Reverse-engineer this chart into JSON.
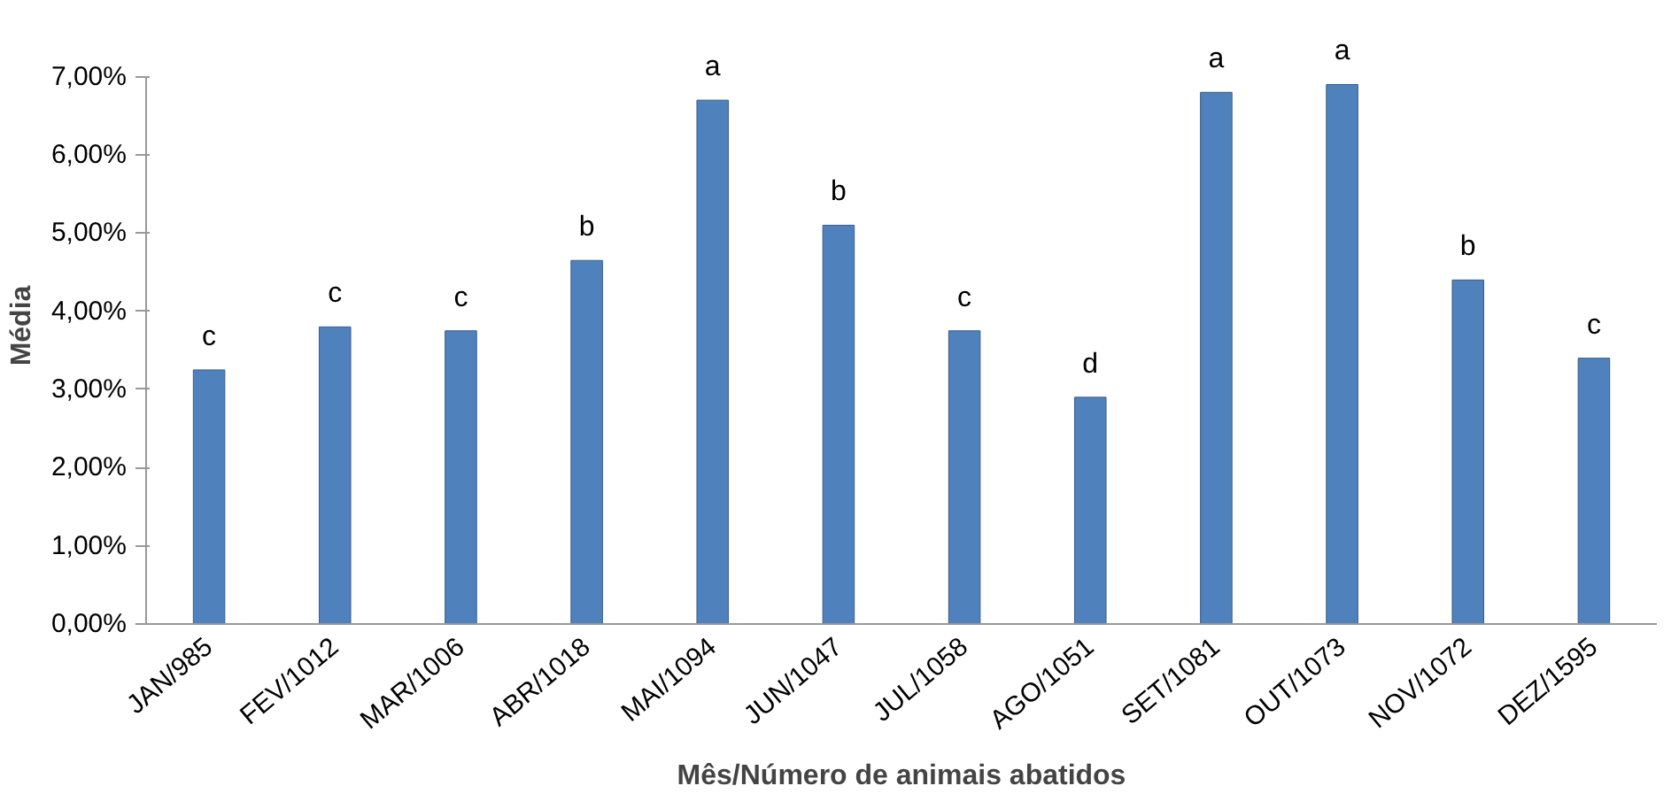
{
  "chart_data": {
    "type": "bar",
    "xlabel": "Mês/Número de animais abatidos",
    "ylabel": "Média",
    "categories": [
      "JAN/985",
      "FEV/1012",
      "MAR/1006",
      "ABR/1018",
      "MAI/1094",
      "JUN/1047",
      "JUL/1058",
      "AGO/1051",
      "SET/1081",
      "OUT/1073",
      "NOV/1072",
      "DEZ/1595"
    ],
    "series": [
      {
        "color": "#4f81bd",
        "values": [
          3.25,
          3.8,
          3.75,
          4.65,
          6.7,
          5.1,
          3.75,
          2.9,
          6.8,
          6.9,
          4.4,
          3.4
        ]
      }
    ],
    "ylim": [
      0,
      7
    ],
    "yticks": [
      {
        "value": 0,
        "label": "0,00%"
      },
      {
        "value": 1,
        "label": "1,00%"
      },
      {
        "value": 2,
        "label": "2,00%"
      },
      {
        "value": 3,
        "label": "3,00%"
      },
      {
        "value": 4,
        "label": "4,00%"
      },
      {
        "value": 5,
        "label": "5,00%"
      },
      {
        "value": 6,
        "label": "6,00%"
      },
      {
        "value": 7,
        "label": "7,00%"
      }
    ],
    "grid": false,
    "annotations": [
      {
        "text": "c",
        "x": "JAN/985",
        "y": 3.25
      },
      {
        "text": "c",
        "x": "FEV/1012",
        "y": 3.8
      },
      {
        "text": "c",
        "x": "MAR/1006",
        "y": 3.75
      },
      {
        "text": "b",
        "x": "ABR/1018",
        "y": 4.65
      },
      {
        "text": "a",
        "x": "MAI/1094",
        "y": 6.7
      },
      {
        "text": "b",
        "x": "JUN/1047",
        "y": 5.1
      },
      {
        "text": "c",
        "x": "JUL/1058",
        "y": 3.75
      },
      {
        "text": "d",
        "x": "AGO/1051",
        "y": 2.9
      },
      {
        "text": "a",
        "x": "SET/1081",
        "y": 6.8
      },
      {
        "text": "a",
        "x": "OUT/1073",
        "y": 6.9
      },
      {
        "text": "b",
        "x": "NOV/1072",
        "y": 4.4
      },
      {
        "text": "c",
        "x": "DEZ/1595",
        "y": 3.4
      }
    ]
  }
}
